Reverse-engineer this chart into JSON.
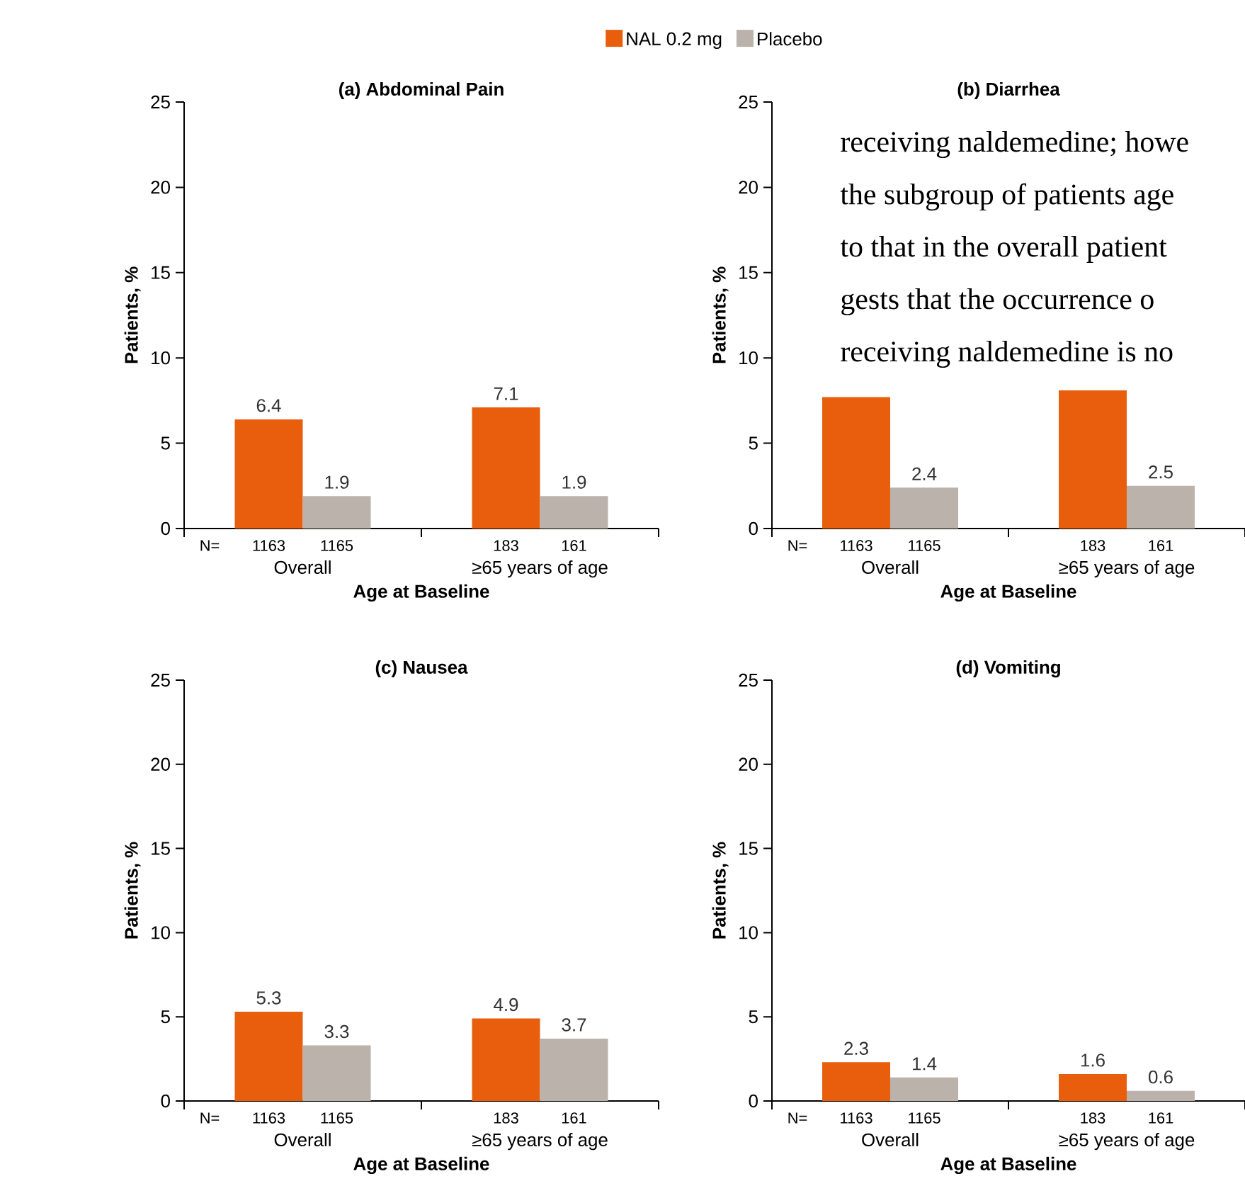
{
  "chart_data": [
    {
      "type": "bar",
      "title": "(a) Abdominal Pain",
      "xlabel": "Age at Baseline",
      "ylabel": "Patients, %",
      "categories": [
        "Overall",
        "≥65 years of age"
      ],
      "series": [
        {
          "name": "NAL 0.2 mg",
          "color": "#e85e0c",
          "values": [
            6.4,
            7.1
          ]
        },
        {
          "name": "Placebo",
          "color": "#bab2ab",
          "values": [
            1.9,
            1.9
          ]
        }
      ],
      "ylim": [
        0,
        25
      ],
      "yticks": [
        0,
        5,
        10,
        15,
        20,
        25
      ],
      "data_labels": true,
      "legend": "top",
      "annotations": [
        "N=",
        "1163",
        "1165",
        "183",
        "161"
      ]
    },
    {
      "type": "bar",
      "title": "(b) Diarrhea",
      "xlabel": "Age at Baseline",
      "ylabel": "Patients, %",
      "categories": [
        "Overall",
        "≥65 years of age"
      ],
      "series": [
        {
          "color": "#e85e0c",
          "values": [
            7.7,
            8.1
          ],
          "value_labels": [
            null,
            null
          ]
        },
        {
          "color": "#bab2ab",
          "values": [
            2.4,
            2.5
          ],
          "value_labels": [
            "2.4",
            "2.5"
          ]
        }
      ],
      "ylim": [
        0,
        25
      ],
      "yticks": [
        0,
        5,
        10,
        15,
        20,
        25
      ],
      "annotations": [
        "N=",
        "1163",
        "1165",
        "183",
        "161",
        "receiving naldemedine; howe",
        "the subgroup of patients age",
        "to that in the overall patient",
        "gests that the occurrence o",
        "receiving naldemedine is no"
      ]
    },
    {
      "type": "bar",
      "title": "(c) Nausea",
      "xlabel": "Age at Baseline",
      "ylabel": "Patients, %",
      "categories": [
        "Overall",
        "≥65 years of age"
      ],
      "series": [
        {
          "color": "#e85e0c",
          "values": [
            5.3,
            4.9
          ]
        },
        {
          "color": "#bab2ab",
          "values": [
            3.3,
            3.7
          ]
        }
      ],
      "ylim": [
        0,
        25
      ],
      "yticks": [
        0,
        5,
        10,
        15,
        20,
        25
      ],
      "data_labels": true,
      "annotations": [
        "N=",
        "1163",
        "1165",
        "183",
        "161"
      ]
    },
    {
      "type": "bar",
      "title": "(d) Vomiting",
      "xlabel": "Age at Baseline",
      "ylabel": "Patients, %",
      "categories": [
        "Overall",
        "≥65 years of age"
      ],
      "series": [
        {
          "color": "#e85e0c",
          "values": [
            2.3,
            1.6
          ]
        },
        {
          "color": "#bab2ab",
          "values": [
            1.4,
            0.6
          ]
        }
      ],
      "ylim": [
        0,
        25
      ],
      "yticks": [
        0,
        5,
        10,
        15,
        20,
        25
      ],
      "data_labels": true,
      "annotations": [
        "N=",
        "1163",
        "1165",
        "183",
        "161"
      ]
    }
  ]
}
